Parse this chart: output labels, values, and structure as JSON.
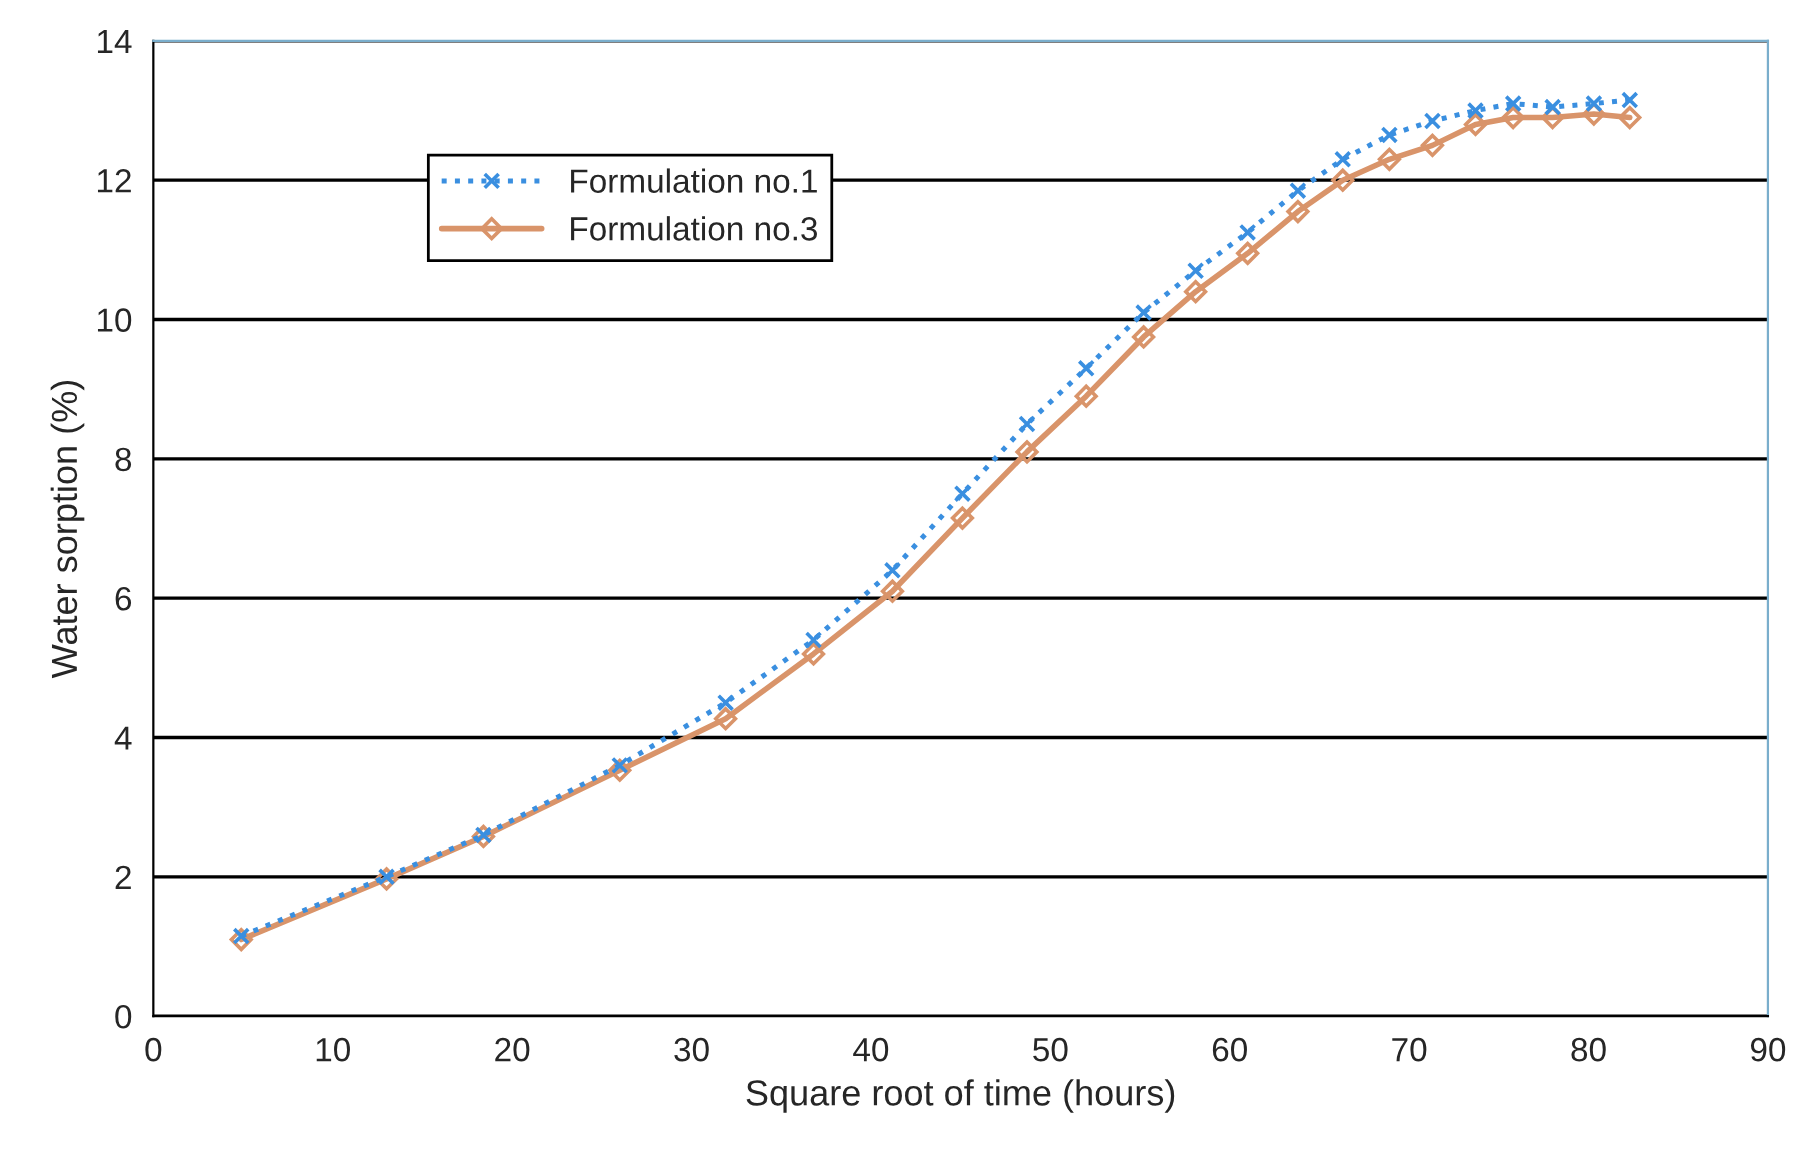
{
  "chart_data": {
    "type": "line",
    "xlabel": "Square root of time (hours)",
    "ylabel": "Water sorption (%)",
    "xlim": [
      0,
      90
    ],
    "xticks": [
      0,
      10,
      20,
      30,
      40,
      50,
      60,
      70,
      80,
      90
    ],
    "ylim": [
      0,
      14
    ],
    "yticks": [
      0,
      2,
      4,
      6,
      8,
      10,
      12,
      14
    ],
    "grid": "y",
    "legend": "top left",
    "x": [
      4.9,
      13,
      18.4,
      26,
      31.9,
      36.8,
      41.2,
      45.1,
      48.7,
      52,
      55.2,
      58.1,
      61,
      63.8,
      66.3,
      68.9,
      71.3,
      73.7,
      75.8,
      78,
      80.3,
      82.3
    ],
    "series": [
      {
        "name": "Formulation no.1",
        "color": "#3a8fe0",
        "line_style": "dotted",
        "marker": "cross",
        "values": [
          1.15,
          2.0,
          2.6,
          3.6,
          4.5,
          5.4,
          6.4,
          7.5,
          8.5,
          9.3,
          10.1,
          10.7,
          11.25,
          11.85,
          12.3,
          12.65,
          12.85,
          13.0,
          13.1,
          13.05,
          13.1,
          13.15
        ]
      },
      {
        "name": "Formulation no.3",
        "color": "#d9946a",
        "line_style": "solid",
        "marker": "diamond",
        "values": [
          1.1,
          1.97,
          2.58,
          3.53,
          4.27,
          5.2,
          6.1,
          7.15,
          8.1,
          8.9,
          9.75,
          10.4,
          10.95,
          11.55,
          12.0,
          12.3,
          12.5,
          12.8,
          12.9,
          12.9,
          12.95,
          12.9
        ]
      }
    ]
  }
}
